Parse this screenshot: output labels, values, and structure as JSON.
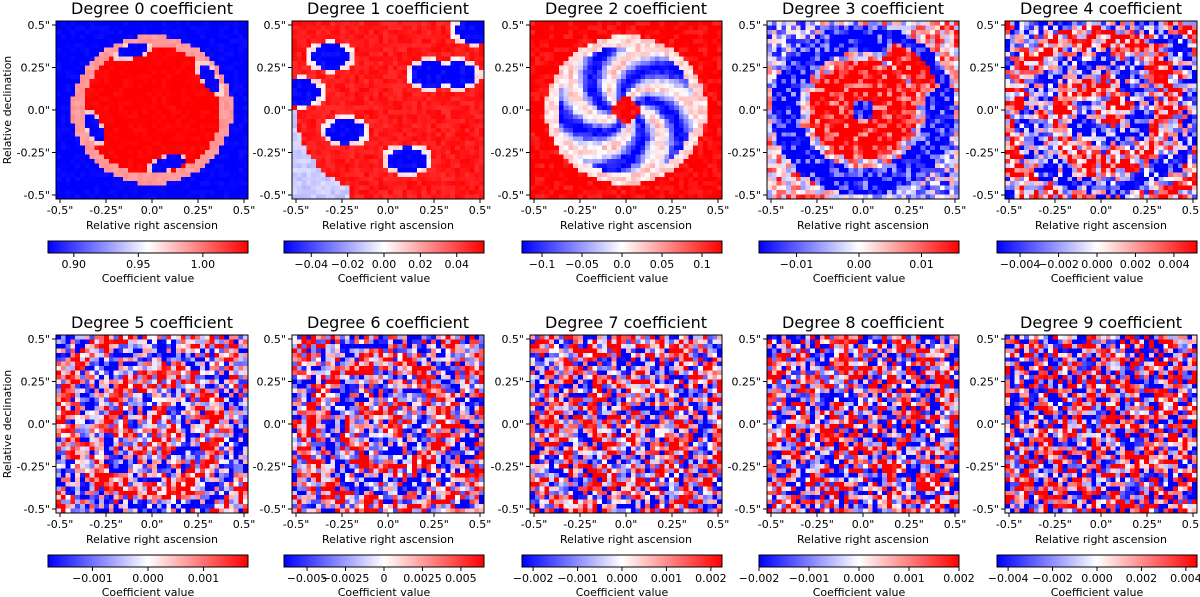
{
  "chart_data": {
    "type": "heatmap",
    "colormap": "bwr",
    "colors": {
      "low": "#0000ff",
      "mid": "#ffffff",
      "high": "#ff0000"
    },
    "grid_size": 40,
    "xlabel": "Relative right ascension",
    "ylabel": "Relative declination",
    "colorbar_label": "Coefficient value",
    "xticks": [
      "-0.5\"",
      "-0.25\"",
      "0.0\"",
      "0.25\"",
      "0.5\""
    ],
    "yticks": [
      "0.5\"",
      "0.25\"",
      "0.0\"",
      "-0.25\"",
      "-0.5\""
    ],
    "panels": [
      {
        "title": "Degree 0 coefficient",
        "pattern": "degree0",
        "vrange": [
          0.88,
          1.035
        ],
        "cbar_ticks": [
          {
            "v": 0.9,
            "label": "0.90"
          },
          {
            "v": 0.95,
            "label": "0.95"
          },
          {
            "v": 1.0,
            "label": "1.00"
          }
        ]
      },
      {
        "title": "Degree 1 coefficient",
        "pattern": "degree1",
        "vrange": [
          -0.055,
          0.055
        ],
        "cbar_ticks": [
          {
            "v": -0.04,
            "label": "−0.04"
          },
          {
            "v": -0.02,
            "label": "−0.02"
          },
          {
            "v": 0,
            "label": "0.00"
          },
          {
            "v": 0.02,
            "label": "0.02"
          },
          {
            "v": 0.04,
            "label": "0.04"
          }
        ]
      },
      {
        "title": "Degree 2 coefficient",
        "pattern": "degree2",
        "vrange": [
          -0.125,
          0.125
        ],
        "cbar_ticks": [
          {
            "v": -0.1,
            "label": "−0.1"
          },
          {
            "v": -0.05,
            "label": "−0.05"
          },
          {
            "v": 0,
            "label": "0.0"
          },
          {
            "v": 0.05,
            "label": "0.05"
          },
          {
            "v": 0.1,
            "label": "0.1"
          }
        ]
      },
      {
        "title": "Degree 3 coefficient",
        "pattern": "degree3",
        "vrange": [
          -0.016,
          0.016
        ],
        "cbar_ticks": [
          {
            "v": -0.01,
            "label": "−0.01"
          },
          {
            "v": 0,
            "label": "0.00"
          },
          {
            "v": 0.01,
            "label": "0.01"
          }
        ]
      },
      {
        "title": "Degree 4 coefficient",
        "pattern": "degree4",
        "vrange": [
          -0.0052,
          0.0052
        ],
        "cbar_ticks": [
          {
            "v": -0.004,
            "label": "−0.004"
          },
          {
            "v": -0.002,
            "label": "−0.002"
          },
          {
            "v": 0,
            "label": "0.000"
          },
          {
            "v": 0.002,
            "label": "0.002"
          },
          {
            "v": 0.004,
            "label": "0.004"
          }
        ]
      },
      {
        "title": "Degree 5 coefficient",
        "pattern": "degree5",
        "vrange": [
          -0.0018,
          0.0018
        ],
        "cbar_ticks": [
          {
            "v": -0.001,
            "label": "−0.001"
          },
          {
            "v": 0,
            "label": "0.000"
          },
          {
            "v": 0.001,
            "label": "0.001"
          }
        ]
      },
      {
        "title": "Degree 6 coefficient",
        "pattern": "degree6",
        "vrange": [
          -0.0065,
          0.0065
        ],
        "cbar_ticks": [
          {
            "v": -0.005,
            "label": "−0.005"
          },
          {
            "v": -0.0025,
            "label": "−0.0025"
          },
          {
            "v": 0,
            "label": "0"
          },
          {
            "v": 0.0025,
            "label": "0.0025"
          },
          {
            "v": 0.005,
            "label": "0.005"
          }
        ]
      },
      {
        "title": "Degree 7 coefficient",
        "pattern": "degree7",
        "vrange": [
          -0.00225,
          0.00225
        ],
        "cbar_ticks": [
          {
            "v": -0.002,
            "label": "−0.002"
          },
          {
            "v": -0.001,
            "label": "−0.001"
          },
          {
            "v": 0,
            "label": "0.000"
          },
          {
            "v": 0.001,
            "label": "0.001"
          },
          {
            "v": 0.002,
            "label": "0.002"
          }
        ]
      },
      {
        "title": "Degree 8 coefficient",
        "pattern": "degree8",
        "vrange": [
          -0.002,
          0.002
        ],
        "cbar_ticks": [
          {
            "v": -0.002,
            "label": "−0.002"
          },
          {
            "v": -0.001,
            "label": "−0.001"
          },
          {
            "v": 0,
            "label": "0.000"
          },
          {
            "v": 0.001,
            "label": "0.001"
          },
          {
            "v": 0.002,
            "label": "0.002"
          }
        ]
      },
      {
        "title": "Degree 9 coefficient",
        "pattern": "degree9",
        "vrange": [
          -0.0045,
          0.0045
        ],
        "cbar_ticks": [
          {
            "v": -0.004,
            "label": "−0.004"
          },
          {
            "v": -0.002,
            "label": "−0.002"
          },
          {
            "v": 0,
            "label": "0.000"
          },
          {
            "v": 0.002,
            "label": "0.002"
          },
          {
            "v": 0.004,
            "label": "0.004"
          }
        ]
      }
    ]
  }
}
